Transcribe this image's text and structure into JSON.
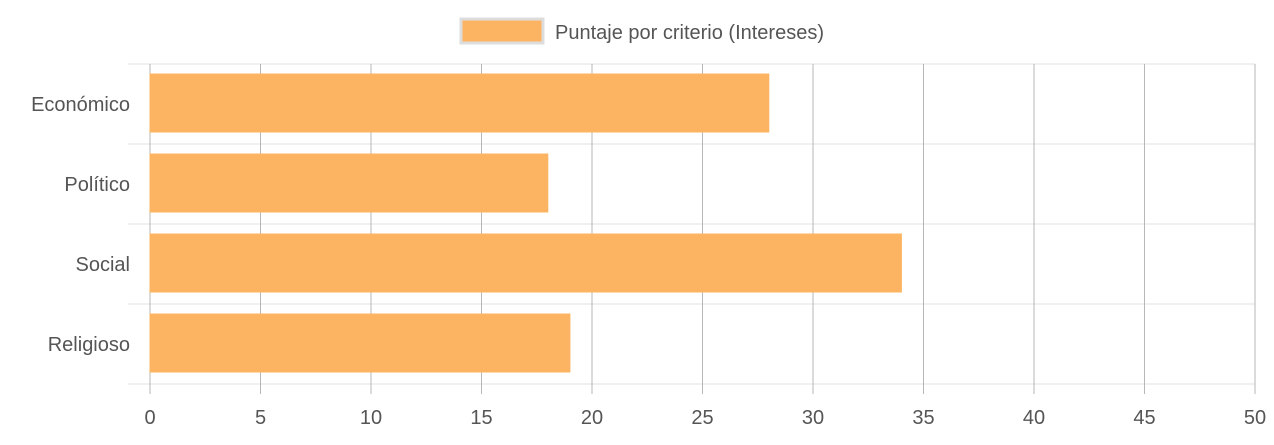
{
  "chart_data": {
    "type": "bar",
    "orientation": "horizontal",
    "categories": [
      "Económico",
      "Político",
      "Social",
      "Religioso"
    ],
    "series": [
      {
        "name": "Puntaje por criterio (Intereses)",
        "values": [
          28,
          18,
          34,
          19
        ]
      }
    ],
    "xlim": [
      0,
      50
    ],
    "xticks": [
      0,
      5,
      10,
      15,
      20,
      25,
      30,
      35,
      40,
      45,
      50
    ],
    "legend_position": "top-center",
    "grid": true,
    "colors": {
      "bar_fill": "#FDB462",
      "bar_stroke": "#FDB462",
      "grid": "#b7b7b7",
      "grid_light": "#e0e0e0",
      "text": "#555555",
      "legend_border": "#dddddd"
    }
  }
}
